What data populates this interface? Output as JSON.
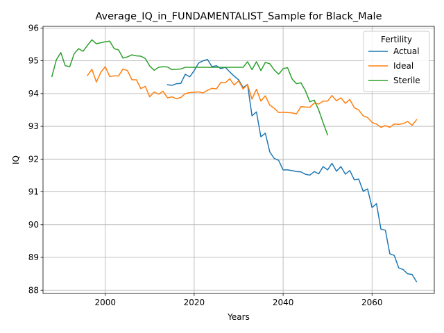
{
  "chart_data": {
    "type": "line",
    "title": "Average_IQ_in_FUNDAMENTALIST_Sample for Black_Male",
    "xlabel": "Years",
    "ylabel": "IQ",
    "xlim": [
      1986,
      2074
    ],
    "ylim": [
      87.9,
      96.05
    ],
    "x_ticks": [
      2000,
      2020,
      2040,
      2060
    ],
    "y_ticks": [
      88,
      89,
      90,
      91,
      92,
      93,
      94,
      95,
      96
    ],
    "grid": true,
    "legend": {
      "title": "Fertility",
      "position": "top-right"
    },
    "series": [
      {
        "name": "Actual",
        "color": "#1f77b4",
        "x": [
          2014,
          2015,
          2016,
          2017,
          2018,
          2019,
          2020,
          2021,
          2022,
          2023,
          2024,
          2025,
          2026,
          2027,
          2028,
          2029,
          2030,
          2031,
          2032,
          2033,
          2034,
          2035,
          2036,
          2037,
          2038,
          2039,
          2040,
          2041,
          2042,
          2043,
          2044,
          2045,
          2046,
          2047,
          2048,
          2049,
          2050,
          2051,
          2052,
          2053,
          2054,
          2055,
          2056,
          2057,
          2058,
          2059,
          2060,
          2061,
          2062,
          2063,
          2064,
          2065,
          2066,
          2067,
          2068,
          2069,
          2070
        ],
        "y": [
          94.27,
          94.25,
          94.3,
          94.31,
          94.59,
          94.51,
          94.7,
          94.93,
          95.0,
          95.04,
          94.82,
          94.85,
          94.76,
          94.8,
          94.66,
          94.53,
          94.42,
          94.18,
          94.28,
          93.32,
          93.44,
          92.68,
          92.79,
          92.22,
          92.02,
          91.96,
          91.67,
          91.67,
          91.65,
          91.62,
          91.61,
          91.54,
          91.51,
          91.62,
          91.55,
          91.77,
          91.67,
          91.87,
          91.63,
          91.77,
          91.54,
          91.65,
          91.37,
          91.39,
          91.02,
          91.09,
          90.52,
          90.64,
          89.86,
          89.83,
          89.11,
          89.06,
          88.68,
          88.63,
          88.5,
          88.48,
          88.26
        ]
      },
      {
        "name": "Ideal",
        "color": "#ff7f0e",
        "x": [
          1996,
          1997,
          1998,
          1999,
          2000,
          2001,
          2002,
          2003,
          2004,
          2005,
          2006,
          2007,
          2008,
          2009,
          2010,
          2011,
          2012,
          2013,
          2014,
          2015,
          2016,
          2017,
          2018,
          2019,
          2020,
          2021,
          2022,
          2023,
          2024,
          2025,
          2026,
          2027,
          2028,
          2029,
          2030,
          2031,
          2032,
          2033,
          2034,
          2035,
          2036,
          2037,
          2038,
          2039,
          2040,
          2041,
          2042,
          2043,
          2044,
          2045,
          2046,
          2047,
          2048,
          2049,
          2050,
          2051,
          2052,
          2053,
          2054,
          2055,
          2056,
          2057,
          2058,
          2059,
          2060,
          2061,
          2062,
          2063,
          2064,
          2065,
          2066,
          2067,
          2068,
          2069,
          2070
        ],
        "y": [
          94.55,
          94.74,
          94.35,
          94.65,
          94.82,
          94.52,
          94.54,
          94.54,
          94.75,
          94.7,
          94.42,
          94.42,
          94.15,
          94.22,
          93.9,
          94.05,
          93.98,
          94.07,
          93.87,
          93.9,
          93.84,
          93.88,
          94.0,
          94.03,
          94.04,
          94.05,
          94.02,
          94.1,
          94.16,
          94.14,
          94.34,
          94.33,
          94.45,
          94.26,
          94.39,
          94.14,
          94.28,
          93.83,
          94.13,
          93.77,
          93.93,
          93.65,
          93.55,
          93.42,
          93.43,
          93.42,
          93.41,
          93.38,
          93.6,
          93.59,
          93.58,
          93.71,
          93.68,
          93.77,
          93.77,
          93.94,
          93.78,
          93.87,
          93.7,
          93.82,
          93.57,
          93.5,
          93.32,
          93.27,
          93.12,
          93.07,
          92.97,
          93.02,
          92.97,
          93.07,
          93.06,
          93.08,
          93.15,
          93.03,
          93.2
        ]
      },
      {
        "name": "Sterile",
        "color": "#2ca02c",
        "x": [
          1988,
          1989,
          1990,
          1991,
          1992,
          1993,
          1994,
          1995,
          1996,
          1997,
          1998,
          1999,
          2000,
          2001,
          2002,
          2003,
          2004,
          2005,
          2006,
          2007,
          2008,
          2009,
          2010,
          2011,
          2012,
          2013,
          2014,
          2015,
          2016,
          2017,
          2018,
          2019,
          2020,
          2021,
          2022,
          2023,
          2024,
          2025,
          2026,
          2027,
          2028,
          2029,
          2030,
          2031,
          2032,
          2033,
          2034,
          2035,
          2036,
          2037,
          2038,
          2039,
          2040,
          2041,
          2042,
          2043,
          2044,
          2045,
          2046,
          2047,
          2048,
          2049,
          2050
        ],
        "y": [
          94.52,
          95.03,
          95.25,
          94.85,
          94.82,
          95.21,
          95.37,
          95.29,
          95.47,
          95.64,
          95.52,
          95.55,
          95.58,
          95.6,
          95.37,
          95.33,
          95.08,
          95.12,
          95.18,
          95.15,
          95.14,
          95.07,
          94.84,
          94.71,
          94.8,
          94.82,
          94.81,
          94.73,
          94.74,
          94.75,
          94.8,
          94.8,
          94.8,
          94.8,
          94.8,
          94.8,
          94.8,
          94.8,
          94.8,
          94.8,
          94.8,
          94.8,
          94.8,
          94.8,
          94.97,
          94.73,
          94.97,
          94.7,
          94.95,
          94.91,
          94.72,
          94.59,
          94.76,
          94.79,
          94.45,
          94.3,
          94.33,
          94.09,
          93.75,
          93.8,
          93.5,
          93.11,
          92.74
        ]
      }
    ]
  }
}
